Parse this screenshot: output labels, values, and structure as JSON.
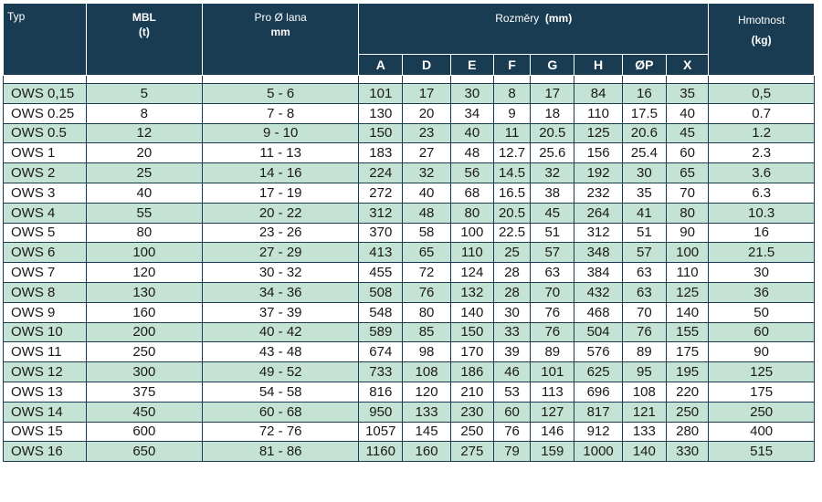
{
  "header": {
    "typ": "Typ",
    "mbl": "MBL",
    "mbl_unit": "(t)",
    "pro_lana": "Pro Ø lana",
    "pro_lana_unit": "mm",
    "rozmery": "Rozměry",
    "rozmery_unit": "(mm)",
    "hmotnost": "Hmotnost",
    "hmotnost_unit": "(kg)",
    "dims": [
      "A",
      "D",
      "E",
      "F",
      "G",
      "H",
      "ØP",
      "X"
    ]
  },
  "rows": [
    [
      "OWS 0,15",
      "5",
      "5 - 6",
      "101",
      "17",
      "30",
      "8",
      "17",
      "84",
      "16",
      "35",
      "0,5"
    ],
    [
      "OWS 0.25",
      "8",
      "7 - 8",
      "130",
      "20",
      "34",
      "9",
      "18",
      "110",
      "17.5",
      "40",
      "0.7"
    ],
    [
      "OWS 0.5",
      "12",
      "9 - 10",
      "150",
      "23",
      "40",
      "11",
      "20.5",
      "125",
      "20.6",
      "45",
      "1.2"
    ],
    [
      "OWS 1",
      "20",
      "11 - 13",
      "183",
      "27",
      "48",
      "12.7",
      "25.6",
      "156",
      "25.4",
      "60",
      "2.3"
    ],
    [
      "OWS 2",
      "25",
      "14 - 16",
      "224",
      "32",
      "56",
      "14.5",
      "32",
      "192",
      "30",
      "65",
      "3.6"
    ],
    [
      "OWS 3",
      "40",
      "17 - 19",
      "272",
      "40",
      "68",
      "16.5",
      "38",
      "232",
      "35",
      "70",
      "6.3"
    ],
    [
      "OWS 4",
      "55",
      "20 - 22",
      "312",
      "48",
      "80",
      "20.5",
      "45",
      "264",
      "41",
      "80",
      "10.3"
    ],
    [
      "OWS 5",
      "80",
      "23 - 26",
      "370",
      "58",
      "100",
      "22.5",
      "51",
      "312",
      "51",
      "90",
      "16"
    ],
    [
      "OWS 6",
      "100",
      "27 - 29",
      "413",
      "65",
      "110",
      "25",
      "57",
      "348",
      "57",
      "100",
      "21.5"
    ],
    [
      "OWS 7",
      "120",
      "30 - 32",
      "455",
      "72",
      "124",
      "28",
      "63",
      "384",
      "63",
      "110",
      "30"
    ],
    [
      "OWS 8",
      "130",
      "34 - 36",
      "508",
      "76",
      "132",
      "28",
      "70",
      "432",
      "63",
      "125",
      "36"
    ],
    [
      "OWS 9",
      "160",
      "37 - 39",
      "548",
      "80",
      "140",
      "30",
      "76",
      "468",
      "70",
      "140",
      "50"
    ],
    [
      "OWS 10",
      "200",
      "40 - 42",
      "589",
      "85",
      "150",
      "33",
      "76",
      "504",
      "76",
      "155",
      "60"
    ],
    [
      "OWS 11",
      "250",
      "43 - 48",
      "674",
      "98",
      "170",
      "39",
      "89",
      "576",
      "89",
      "175",
      "90"
    ],
    [
      "OWS 12",
      "300",
      "49 - 52",
      "733",
      "108",
      "186",
      "46",
      "101",
      "625",
      "95",
      "195",
      "125"
    ],
    [
      "OWS 13",
      "375",
      "54 - 58",
      "816",
      "120",
      "210",
      "53",
      "113",
      "696",
      "108",
      "220",
      "175"
    ],
    [
      "OWS 14",
      "450",
      "60 - 68",
      "950",
      "133",
      "230",
      "60",
      "127",
      "817",
      "121",
      "250",
      "250"
    ],
    [
      "OWS 15",
      "600",
      "72 - 76",
      "1057",
      "145",
      "250",
      "76",
      "146",
      "912",
      "133",
      "280",
      "400"
    ],
    [
      "OWS 16",
      "650",
      "81 - 86",
      "1160",
      "160",
      "275",
      "79",
      "159",
      "1000",
      "140",
      "330",
      "515"
    ]
  ],
  "colors": {
    "header_bg": "#1a3c52",
    "stripe": "#c5e3d5"
  }
}
